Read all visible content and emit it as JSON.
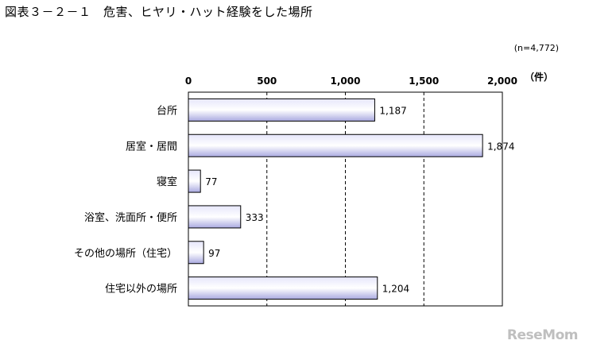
{
  "page": {
    "title": "図表３－２－１　危害、ヒヤリ・ハット経験をした場所"
  },
  "watermark": "ReseMom",
  "chart_data": {
    "type": "bar",
    "orientation": "horizontal",
    "title": "",
    "note": "(n=4,772)",
    "unit_label": "（件）",
    "categories": [
      "台所",
      "居室・居間",
      "寝室",
      "浴室、洗面所・便所",
      "その他の場所（住宅）",
      "住宅以外の場所"
    ],
    "values": [
      1187,
      1874,
      77,
      333,
      97,
      1204
    ],
    "value_labels": [
      "1,187",
      "1,874",
      "77",
      "333",
      "97",
      "1,204"
    ],
    "xlim": [
      0,
      2000
    ],
    "ticks": [
      0,
      500,
      1000,
      1500,
      2000
    ],
    "tick_labels": [
      "0",
      "500",
      "1,000",
      "1,500",
      "2,000"
    ],
    "grid": "vertical dashed",
    "legend": "none",
    "bar_color": "#c8c8f0"
  }
}
